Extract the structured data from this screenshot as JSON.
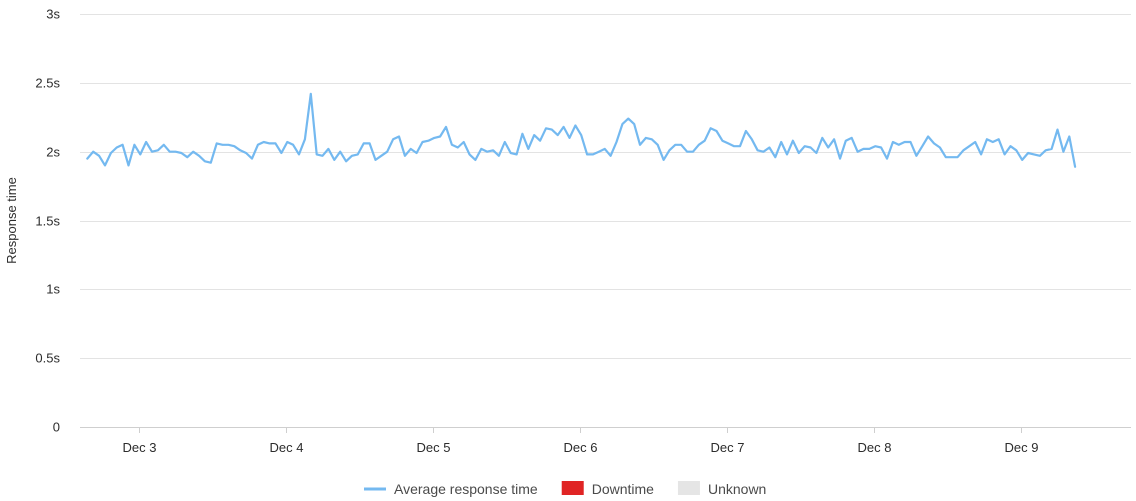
{
  "chart_data": {
    "type": "line",
    "ylabel": "Response time",
    "ylim": [
      0,
      3
    ],
    "y_ticks": [
      {
        "value": 0,
        "label": "0"
      },
      {
        "value": 0.5,
        "label": "0.5s"
      },
      {
        "value": 1,
        "label": "1s"
      },
      {
        "value": 1.5,
        "label": "1.5s"
      },
      {
        "value": 2,
        "label": "2s"
      },
      {
        "value": 2.5,
        "label": "2.5s"
      },
      {
        "value": 3,
        "label": "3s"
      }
    ],
    "xlim": [
      2.6,
      9.75
    ],
    "x_ticks": [
      {
        "value": 3,
        "label": "Dec 3"
      },
      {
        "value": 4,
        "label": "Dec 4"
      },
      {
        "value": 5,
        "label": "Dec 5"
      },
      {
        "value": 6,
        "label": "Dec 6"
      },
      {
        "value": 7,
        "label": "Dec 7"
      },
      {
        "value": 8,
        "label": "Dec 8"
      },
      {
        "value": 9,
        "label": "Dec 9"
      }
    ],
    "grid": true,
    "legend_position": "bottom",
    "legend": [
      {
        "label": "Average response time",
        "swatch": "line",
        "color": "#74b9f0"
      },
      {
        "label": "Downtime",
        "swatch": "box",
        "color": "#e02424"
      },
      {
        "label": "Unknown",
        "swatch": "box",
        "color": "#e5e5e5"
      }
    ],
    "series": [
      {
        "name": "Average response time",
        "color": "#74b9f0",
        "x_start": 2.65,
        "x_step": 0.04,
        "values": [
          1.95,
          2.0,
          1.97,
          1.9,
          1.99,
          2.03,
          2.05,
          1.9,
          2.05,
          1.98,
          2.07,
          2.0,
          2.01,
          2.05,
          2.0,
          2.0,
          1.99,
          1.96,
          2.0,
          1.97,
          1.93,
          1.92,
          2.06,
          2.05,
          2.05,
          2.04,
          2.01,
          1.99,
          1.95,
          2.05,
          2.07,
          2.06,
          2.06,
          1.99,
          2.07,
          2.05,
          1.98,
          2.09,
          2.42,
          1.98,
          1.97,
          2.02,
          1.94,
          2.0,
          1.93,
          1.97,
          1.98,
          2.06,
          2.06,
          1.94,
          1.97,
          2.0,
          2.09,
          2.11,
          1.97,
          2.02,
          1.99,
          2.07,
          2.08,
          2.1,
          2.11,
          2.18,
          2.05,
          2.03,
          2.07,
          1.98,
          1.94,
          2.02,
          2.0,
          2.01,
          1.97,
          2.07,
          1.99,
          1.98,
          2.13,
          2.02,
          2.12,
          2.08,
          2.17,
          2.16,
          2.12,
          2.18,
          2.1,
          2.19,
          2.12,
          1.98,
          1.98,
          2.0,
          2.02,
          1.97,
          2.07,
          2.2,
          2.24,
          2.2,
          2.05,
          2.1,
          2.09,
          2.05,
          1.94,
          2.01,
          2.05,
          2.05,
          2.0,
          2.0,
          2.05,
          2.08,
          2.17,
          2.15,
          2.08,
          2.06,
          2.04,
          2.04,
          2.15,
          2.09,
          2.01,
          2.0,
          2.03,
          1.96,
          2.07,
          1.98,
          2.08,
          1.99,
          2.04,
          2.03,
          1.99,
          2.1,
          2.03,
          2.09,
          1.95,
          2.08,
          2.1,
          2.0,
          2.02,
          2.02,
          2.04,
          2.03,
          1.95,
          2.07,
          2.05,
          2.07,
          2.07,
          1.97,
          2.04,
          2.11,
          2.06,
          2.03,
          1.96,
          1.96,
          1.96,
          2.01,
          2.04,
          2.07,
          1.98,
          2.09,
          2.07,
          2.09,
          1.98,
          2.04,
          2.01,
          1.94,
          1.99,
          1.98,
          1.97,
          2.01,
          2.02,
          2.16,
          2.0,
          2.11,
          1.89
        ]
      }
    ]
  }
}
